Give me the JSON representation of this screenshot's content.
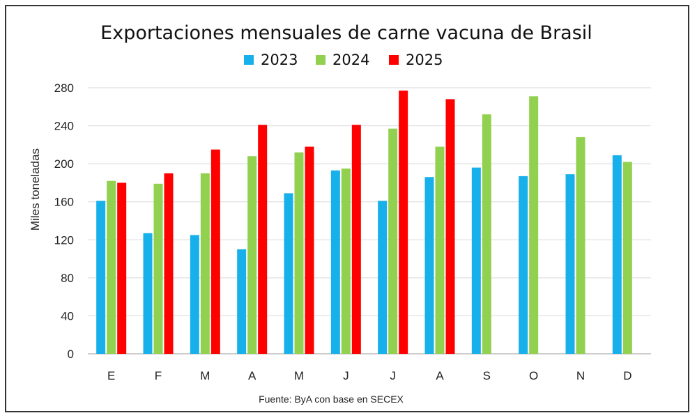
{
  "chart_data": {
    "type": "bar",
    "title": "Exportaciones mensuales de carne vacuna de Brasil",
    "source": "Fuente: ByA con base en SECEX",
    "ylabel": "Miles toneladas",
    "xlabel": "",
    "ylim": [
      0,
      280
    ],
    "yticks": [
      0,
      40,
      80,
      120,
      160,
      200,
      240,
      280
    ],
    "grid": true,
    "legend_position": "top",
    "categories": [
      "E",
      "F",
      "M",
      "A",
      "M",
      "J",
      "J",
      "A",
      "S",
      "O",
      "N",
      "D"
    ],
    "series": [
      {
        "name": "2023",
        "color": "#17b0ea",
        "values": [
          161,
          127,
          125,
          110,
          169,
          193,
          161,
          186,
          196,
          187,
          189,
          209
        ]
      },
      {
        "name": "2024",
        "color": "#92d050",
        "values": [
          182,
          179,
          190,
          208,
          212,
          195,
          237,
          218,
          252,
          271,
          228,
          202
        ]
      },
      {
        "name": "2025",
        "color": "#ff0000",
        "values": [
          180,
          190,
          215,
          241,
          218,
          241,
          277,
          268,
          null,
          null,
          null,
          null
        ]
      }
    ]
  }
}
